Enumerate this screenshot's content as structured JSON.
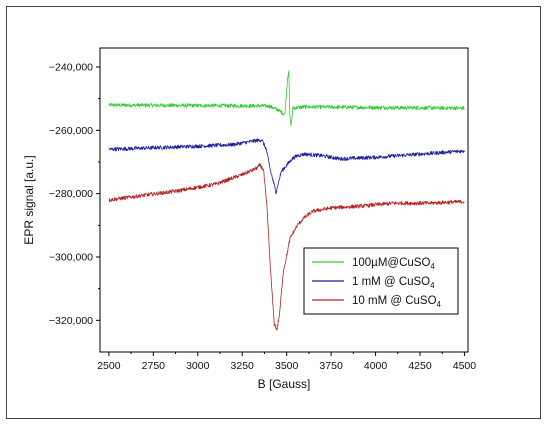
{
  "chart_data": {
    "type": "line",
    "xlabel": "B [Gauss]",
    "ylabel": "EPR signal [a.u.]",
    "xlim": [
      2450,
      4520
    ],
    "ylim": [
      -330000,
      -234000
    ],
    "xticks": [
      2500,
      2750,
      3000,
      3250,
      3500,
      3750,
      4000,
      4250,
      4500
    ],
    "xtick_labels": [
      "2500",
      "2750",
      "3000",
      "3250",
      "3500",
      "3750",
      "4000",
      "4250",
      "4500"
    ],
    "yticks": [
      -240000,
      -260000,
      -280000,
      -300000,
      -320000
    ],
    "ytick_labels": [
      "-240,000",
      "-260,000",
      "-280,000",
      "-300,000",
      "-320,000"
    ],
    "grid": false,
    "legend_position": "bottom-right",
    "series": [
      {
        "name": "100µM@CuSO4",
        "label_main": "100µM@CuSO",
        "label_sub": "4",
        "color": "#33cc33",
        "points": [
          [
            2500,
            -252000
          ],
          [
            3400,
            -252300
          ],
          [
            3450,
            -253500
          ],
          [
            3490,
            -255000
          ],
          [
            3505,
            -243500
          ],
          [
            3512,
            -241000
          ],
          [
            3518,
            -255500
          ],
          [
            3525,
            -258500
          ],
          [
            3535,
            -253000
          ],
          [
            3600,
            -252600
          ],
          [
            4500,
            -253000
          ]
        ],
        "noise": 600
      },
      {
        "name": "1 mM @ CuSO4",
        "label_main": "1 mM @ CuSO",
        "label_sub": "4",
        "color": "#1f1f99",
        "points": [
          [
            2500,
            -266000
          ],
          [
            3000,
            -265000
          ],
          [
            3200,
            -264500
          ],
          [
            3300,
            -263500
          ],
          [
            3360,
            -263000
          ],
          [
            3385,
            -266000
          ],
          [
            3410,
            -273000
          ],
          [
            3440,
            -279500
          ],
          [
            3470,
            -273000
          ],
          [
            3500,
            -271000
          ],
          [
            3530,
            -269000
          ],
          [
            3560,
            -268000
          ],
          [
            3600,
            -267500
          ],
          [
            3700,
            -268000
          ],
          [
            3800,
            -269000
          ],
          [
            4000,
            -268500
          ],
          [
            4500,
            -266500
          ]
        ],
        "noise": 600
      },
      {
        "name": "10 mM @ CuSO4",
        "label_main": "10 mM @ CuSO",
        "label_sub": "4",
        "color": "#b22222",
        "points": [
          [
            2500,
            -282000
          ],
          [
            2700,
            -280500
          ],
          [
            2900,
            -279000
          ],
          [
            3100,
            -277000
          ],
          [
            3250,
            -274000
          ],
          [
            3330,
            -272000
          ],
          [
            3350,
            -271000
          ],
          [
            3370,
            -272500
          ],
          [
            3390,
            -285000
          ],
          [
            3410,
            -305000
          ],
          [
            3430,
            -321000
          ],
          [
            3445,
            -323000
          ],
          [
            3460,
            -318000
          ],
          [
            3480,
            -305000
          ],
          [
            3520,
            -294000
          ],
          [
            3560,
            -290000
          ],
          [
            3600,
            -287500
          ],
          [
            3650,
            -285500
          ],
          [
            3750,
            -284500
          ],
          [
            3900,
            -284000
          ],
          [
            4100,
            -283000
          ],
          [
            4300,
            -283000
          ],
          [
            4500,
            -282500
          ]
        ],
        "noise": 600
      }
    ]
  }
}
